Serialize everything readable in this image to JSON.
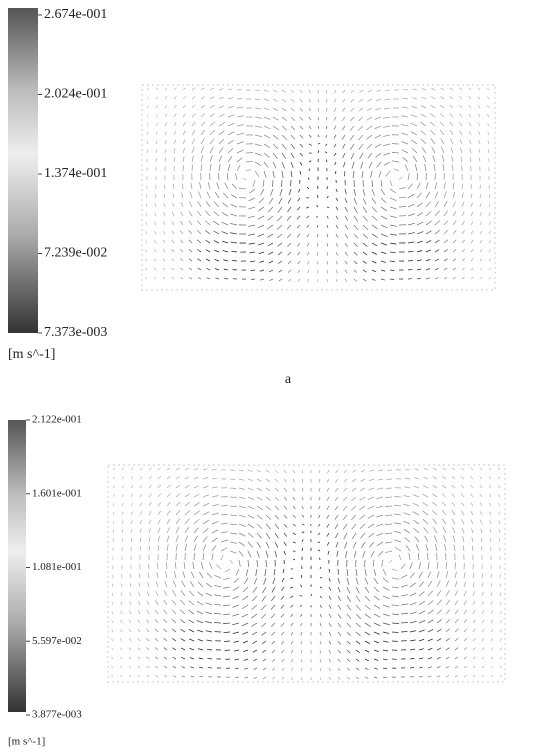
{
  "panels": [
    {
      "colorbar": {
        "labels": [
          "2.674e-001",
          "2.024e-001",
          "1.374e-001",
          "7.239e-002",
          "7.373e-003"
        ],
        "unit": "[m s^-1]"
      },
      "caption": "a"
    },
    {
      "colorbar": {
        "labels": [
          "2.122e-001",
          "1.601e-001",
          "1.081e-001",
          "5.597e-002",
          "3.877e-003"
        ],
        "unit": "[m s^-1]"
      }
    }
  ]
}
